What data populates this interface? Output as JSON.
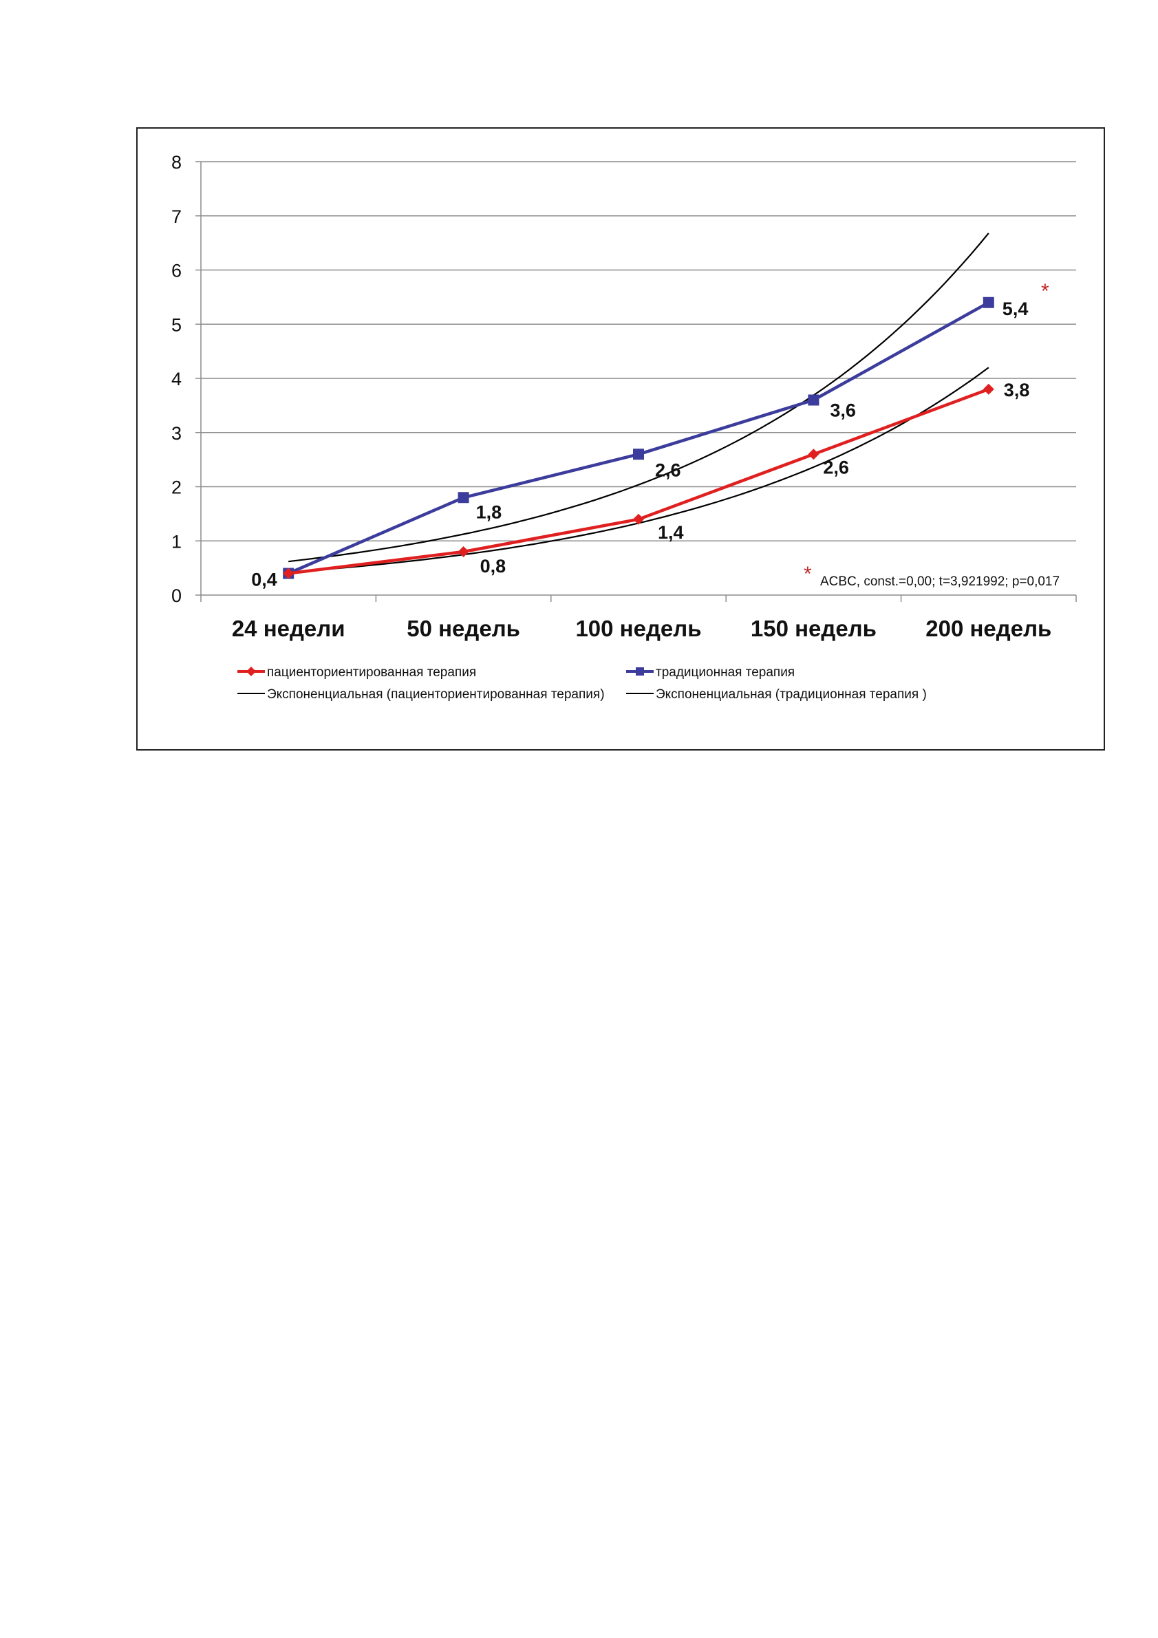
{
  "chart_data": {
    "type": "line",
    "categories": [
      "24 недели",
      "50 недель",
      "100 недель",
      "150 недель",
      "200 недель"
    ],
    "ylim": [
      0,
      8
    ],
    "yticks": [
      "0",
      "1",
      "2",
      "3",
      "4",
      "5",
      "6",
      "7",
      "8"
    ],
    "grid": true,
    "legend_position": "bottom",
    "series": [
      {
        "name": "пациенториентированная терапия",
        "values": [
          0.4,
          0.8,
          1.4,
          2.6,
          3.8
        ],
        "data_labels": [
          "",
          "0,8",
          "1,4",
          "2,6",
          "3,8"
        ],
        "color": "#e02020",
        "marker": "diamond"
      },
      {
        "name": "традиционная терапия",
        "values": [
          0.4,
          1.8,
          2.6,
          3.6,
          5.4
        ],
        "data_labels": [
          "0,4",
          "1,8",
          "2,6",
          "3,6",
          "5,4"
        ],
        "color": "#3c3c9c",
        "marker": "square"
      }
    ],
    "trendlines": [
      {
        "name": "Экспоненциальная (пациенториентированная терапия)",
        "type": "exponential",
        "values": [
          0.42,
          0.8,
          1.34,
          2.4,
          4.2
        ],
        "color": "#000000"
      },
      {
        "name": "Экспоненциальная (традиционная терапия )",
        "type": "exponential",
        "values": [
          0.62,
          1.12,
          2.05,
          3.72,
          6.68
        ],
        "color": "#000000"
      }
    ],
    "annotations": [
      {
        "text": "*",
        "color": "#c0282c"
      },
      {
        "text": "ACBC, const.=0,00; t=3,921992; p=0,017",
        "marker_text": "*",
        "marker_color": "#c0282c"
      }
    ]
  }
}
